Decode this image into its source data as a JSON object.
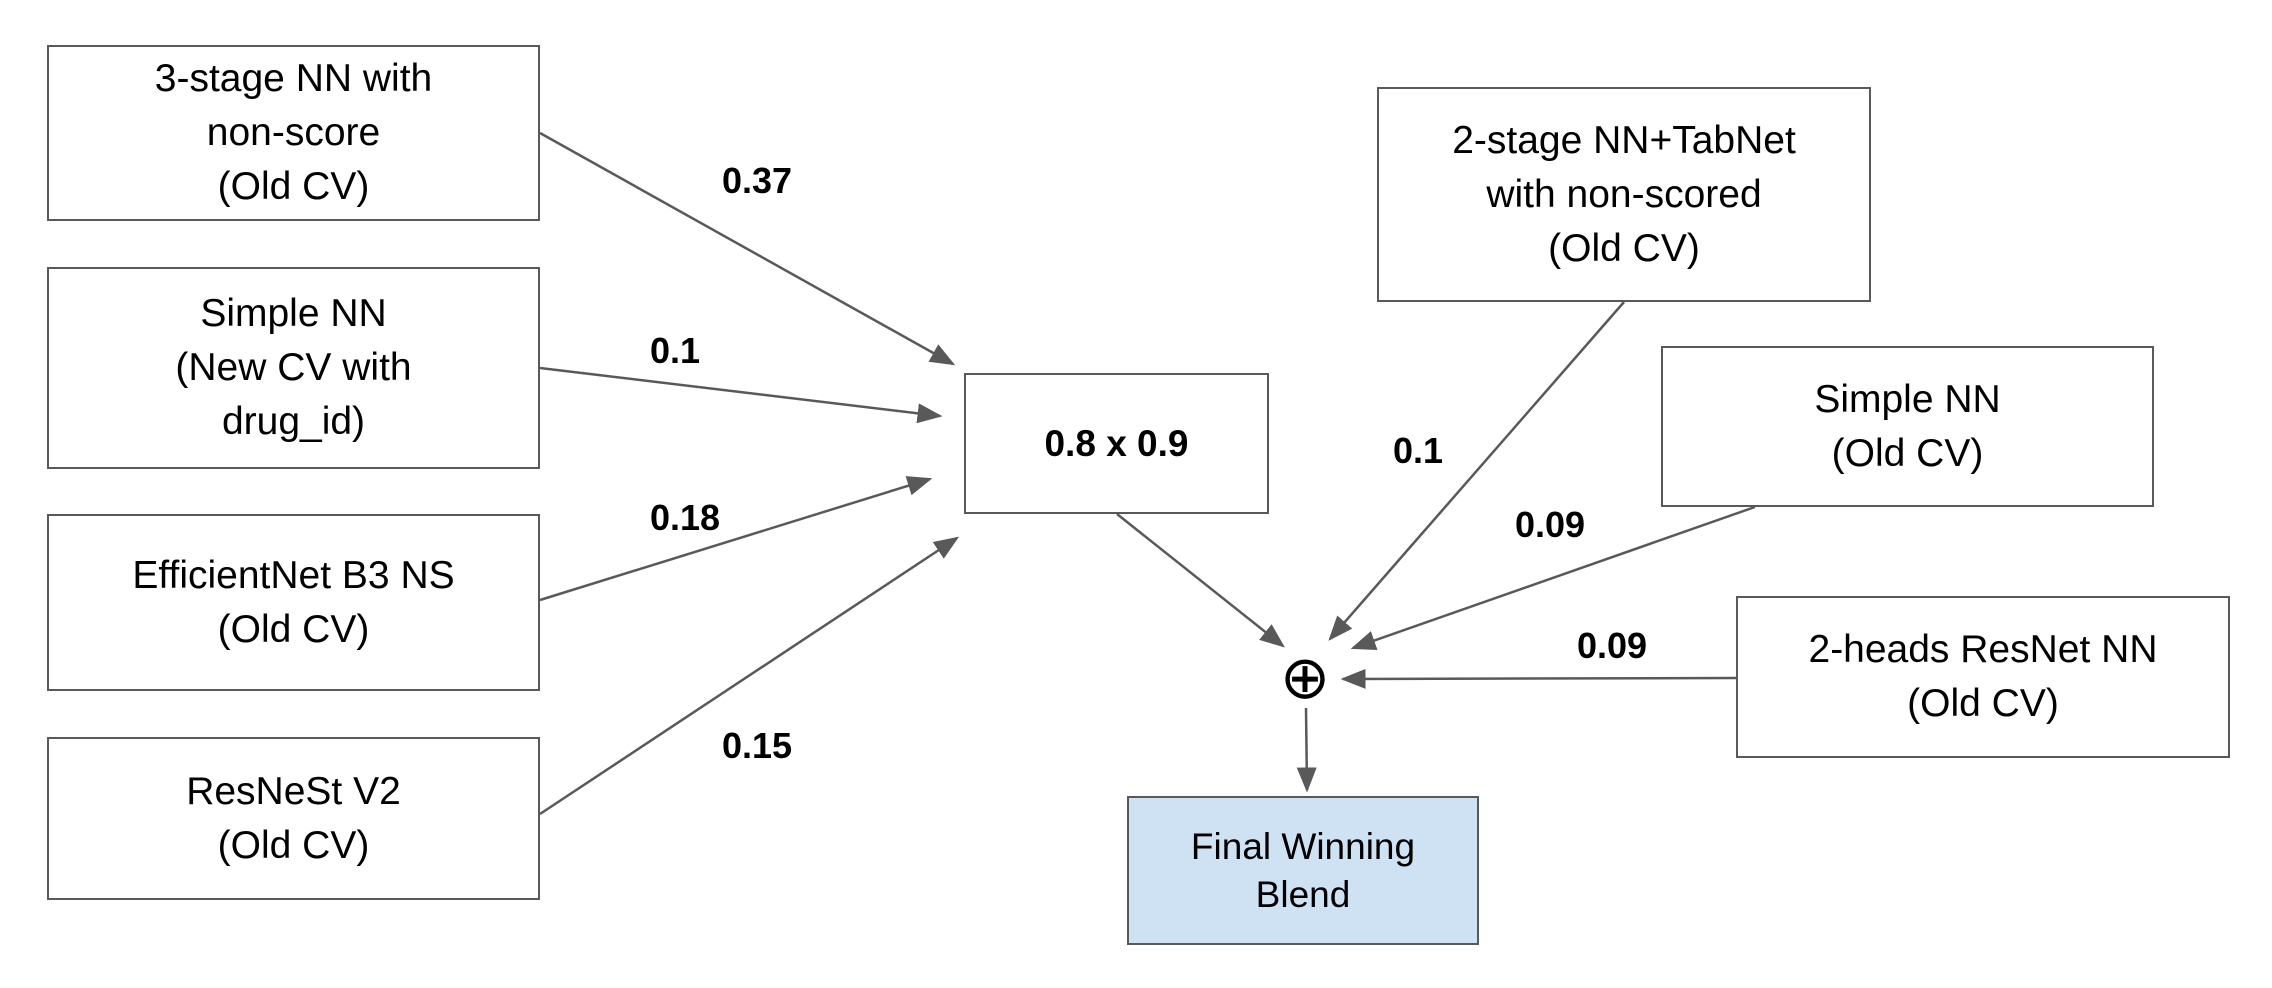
{
  "nodes": {
    "three_stage_nn": "3-stage NN with\nnon-score\n(Old CV)",
    "simple_nn_new_cv": "Simple NN\n(New CV with\ndrug_id)",
    "efficientnet": "EfficientNet B3 NS\n(Old CV)",
    "resnest": "ResNeSt V2\n(Old CV)",
    "inner_blend": "0.8 x 0.9",
    "two_stage_tabnet": "2-stage NN+TabNet\nwith non-scored\n(Old CV)",
    "simple_nn_old_cv": "Simple NN\n(Old CV)",
    "two_heads_resnet": "2-heads ResNet NN\n(Old CV)",
    "final_blend": "Final Winning\nBlend"
  },
  "weights": {
    "three_stage_nn": "0.37",
    "simple_nn_new_cv": "0.1",
    "efficientnet": "0.18",
    "resnest": "0.15",
    "two_stage_tabnet": "0.1",
    "simple_nn_old_cv": "0.09",
    "two_heads_resnet": "0.09"
  },
  "operator": "⊕",
  "colors": {
    "final_fill": "#cfe2f3",
    "line": "#595959"
  }
}
